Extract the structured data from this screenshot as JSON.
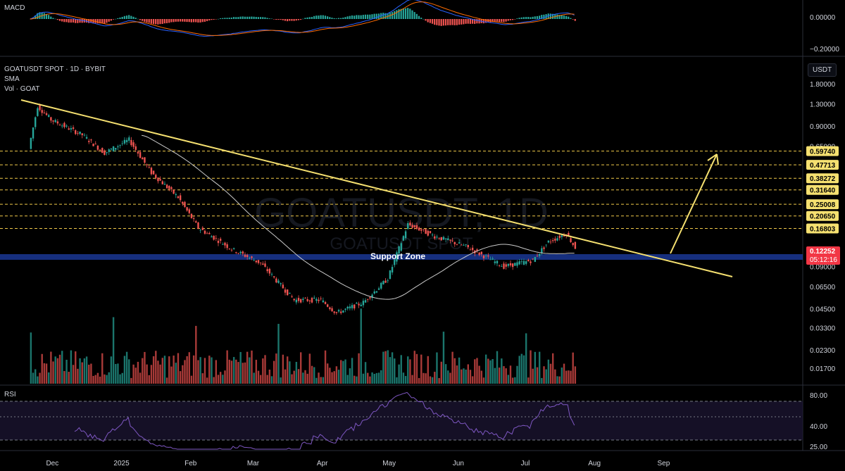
{
  "header": {
    "symbol_line": "GOATUSDT SPOT · 1D · BYBIT",
    "sma_label": "SMA",
    "vol_label": "Vol · GOAT",
    "macd_label": "MACD",
    "rsi_label": "RSI",
    "currency_button": "USDT"
  },
  "watermark": {
    "big": "GOATUSDT, 1D",
    "small": "GOATUSDT SPOT"
  },
  "annotations": {
    "support_zone": "Support Zone"
  },
  "colors": {
    "background": "#000000",
    "up": "#26a69a",
    "down": "#ef5350",
    "trendline": "#f5e070",
    "level_line": "#f0c94a",
    "level_label_bg": "#f5e070",
    "sma": "#c9c9c9",
    "support_zone": "#1d3fa8",
    "macd_line": "#2962ff",
    "signal_line": "#ff6d00",
    "rsi_line": "#7e57c2",
    "price_tag": "#f23645"
  },
  "chart_data": [
    {
      "type": "candlestick",
      "panel": "price",
      "title": "GOATUSDT SPOT · 1D · BYBIT",
      "y_scale": "log",
      "y_ticks": [
        "1.80000",
        "1.30000",
        "0.90000",
        "0.65000",
        "0.47713",
        "0.09000",
        "0.06500",
        "0.04500",
        "0.03300",
        "0.02300",
        "0.01700"
      ],
      "x_ticks": [
        "Dec",
        "2025",
        "Feb",
        "Mar",
        "Apr",
        "May",
        "Jun",
        "Jul",
        "Aug",
        "Sep"
      ],
      "key_closes": [
        {
          "date": "2024-11-21",
          "price": 0.62
        },
        {
          "date": "2024-11-25",
          "price": 1.25
        },
        {
          "date": "2024-12-01",
          "price": 1.0
        },
        {
          "date": "2024-12-15",
          "price": 0.78
        },
        {
          "date": "2024-12-25",
          "price": 0.58
        },
        {
          "date": "2025-01-05",
          "price": 0.72
        },
        {
          "date": "2025-01-15",
          "price": 0.42
        },
        {
          "date": "2025-01-27",
          "price": 0.28
        },
        {
          "date": "2025-02-05",
          "price": 0.17
        },
        {
          "date": "2025-02-20",
          "price": 0.12
        },
        {
          "date": "2025-03-05",
          "price": 0.095
        },
        {
          "date": "2025-03-20",
          "price": 0.052
        },
        {
          "date": "2025-04-01",
          "price": 0.052
        },
        {
          "date": "2025-04-08",
          "price": 0.042
        },
        {
          "date": "2025-04-20",
          "price": 0.05
        },
        {
          "date": "2025-05-01",
          "price": 0.074
        },
        {
          "date": "2025-05-10",
          "price": 0.18
        },
        {
          "date": "2025-05-22",
          "price": 0.148
        },
        {
          "date": "2025-06-05",
          "price": 0.125
        },
        {
          "date": "2025-06-22",
          "price": 0.09
        },
        {
          "date": "2025-07-05",
          "price": 0.1
        },
        {
          "date": "2025-07-12",
          "price": 0.135
        },
        {
          "date": "2025-07-20",
          "price": 0.155
        },
        {
          "date": "2025-07-24",
          "price": 0.12252
        }
      ],
      "horizontal_levels": [
        "0.59740",
        "0.47713",
        "0.38272",
        "0.31640",
        "0.25008",
        "0.20650",
        "0.16803"
      ],
      "current_price": "0.12252",
      "countdown": "05:12:16",
      "support_zone": {
        "low": 0.113,
        "high": 0.119
      },
      "trendline": [
        {
          "date": "2024-11-17",
          "price": 1.45
        },
        {
          "date": "2025-07-31",
          "price": 0.082
        }
      ],
      "projection_arrow": [
        {
          "date": "2025-07-24",
          "price": 0.125
        },
        {
          "date": "2025-08-01",
          "price": 0.6
        }
      ]
    },
    {
      "type": "line",
      "panel": "macd",
      "title": "MACD",
      "y_ticks": [
        "0.00000",
        "−0.20000"
      ]
    },
    {
      "type": "line",
      "panel": "rsi",
      "title": "RSI",
      "y_ticks": [
        "80.00",
        "40.00",
        "25.00"
      ]
    }
  ]
}
